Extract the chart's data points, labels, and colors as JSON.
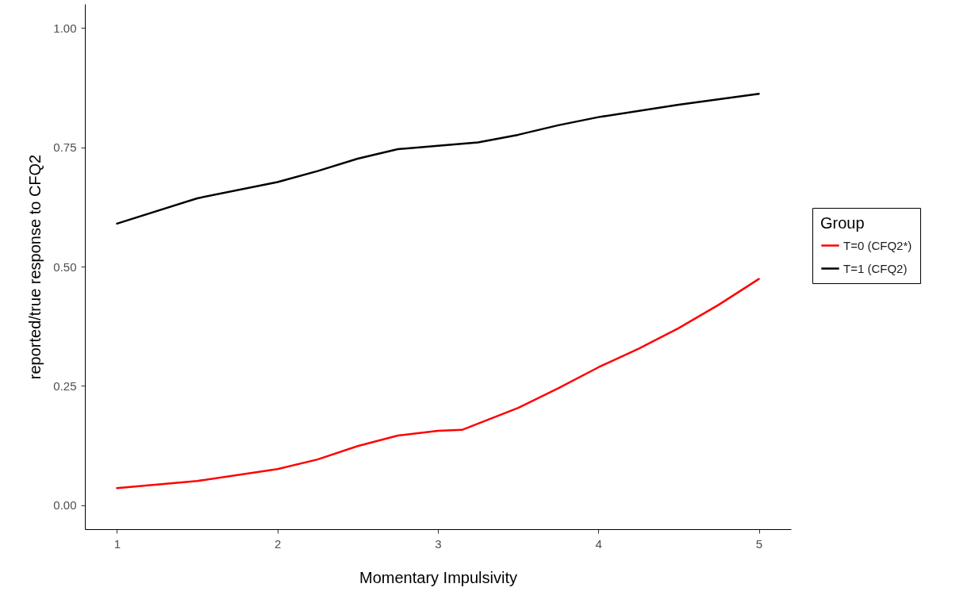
{
  "chart_data": {
    "type": "line",
    "xlabel": "Momentary Impulsivity",
    "ylabel": "reported/true response to CFQ2",
    "legend_title": "Group",
    "legend": "right",
    "grid": false,
    "marker": "none",
    "line_style": "solid",
    "xlim": [
      0.8,
      5.2
    ],
    "xticks": [
      1,
      2,
      3,
      4,
      5
    ],
    "ylim": [
      -0.05,
      1.05
    ],
    "yticks": [
      {
        "value": 0,
        "label": "0.00"
      },
      {
        "value": 0.25,
        "label": "0.25"
      },
      {
        "value": 0.5,
        "label": "0.50"
      },
      {
        "value": 0.75,
        "label": "0.75"
      },
      {
        "value": 1,
        "label": "1.00"
      }
    ],
    "series": [
      {
        "name": "T=0 (CFQ2*)",
        "color": "#ff0000",
        "x": [
          1,
          1.5,
          2,
          2.25,
          2.5,
          2.75,
          3,
          3.15,
          3.5,
          3.75,
          4,
          4.25,
          4.5,
          4.75,
          5
        ],
        "values": [
          0.036,
          0.051,
          0.076,
          0.096,
          0.124,
          0.146,
          0.156,
          0.158,
          0.204,
          0.245,
          0.289,
          0.328,
          0.371,
          0.42,
          0.474
        ]
      },
      {
        "name": "T=1 (CFQ2)",
        "color": "#000000",
        "x": [
          1,
          1.5,
          2,
          2.25,
          2.5,
          2.75,
          3,
          3.25,
          3.5,
          3.75,
          4,
          4.5,
          5
        ],
        "values": [
          0.59,
          0.643,
          0.677,
          0.7,
          0.726,
          0.746,
          0.753,
          0.76,
          0.776,
          0.796,
          0.813,
          0.839,
          0.862
        ]
      }
    ]
  }
}
